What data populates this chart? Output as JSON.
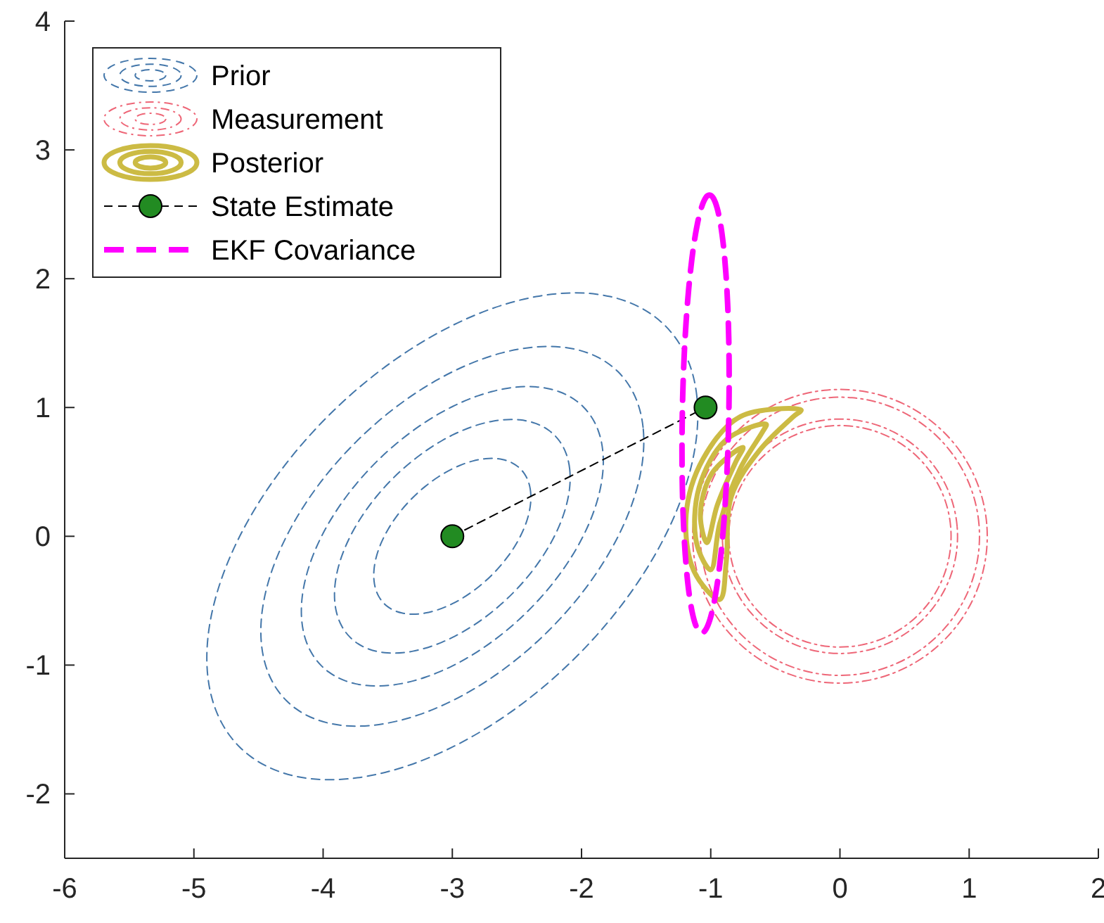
{
  "chart_data": {
    "type": "line",
    "xlim": [
      -6,
      2
    ],
    "ylim": [
      -2.5,
      4
    ],
    "xticks": [
      -6,
      -5,
      -4,
      -3,
      -2,
      -1,
      0,
      1,
      2
    ],
    "yticks": [
      -2,
      -1,
      0,
      1,
      2,
      3,
      4
    ],
    "grid": false,
    "legend": "top left",
    "marker": "none",
    "series": [
      {
        "name": "Prior",
        "color": "#4477aa",
        "line_style": "dashed"
      },
      {
        "name": "Measurement",
        "color": "#ee6677",
        "line_style": "dashdot"
      },
      {
        "name": "Posterior",
        "color": "#ccbb44",
        "line_style": "solid"
      },
      {
        "name": "State Estimate",
        "color": "#000000",
        "colors": [
          "#228b22",
          "#228b22"
        ],
        "line_style": "dashed",
        "marker": "circle",
        "x": [
          -3,
          -1.04
        ],
        "values": [
          0,
          1
        ]
      },
      {
        "name": "EKF Covariance",
        "color": "#ff00ff",
        "line_style": "dashed"
      }
    ]
  }
}
